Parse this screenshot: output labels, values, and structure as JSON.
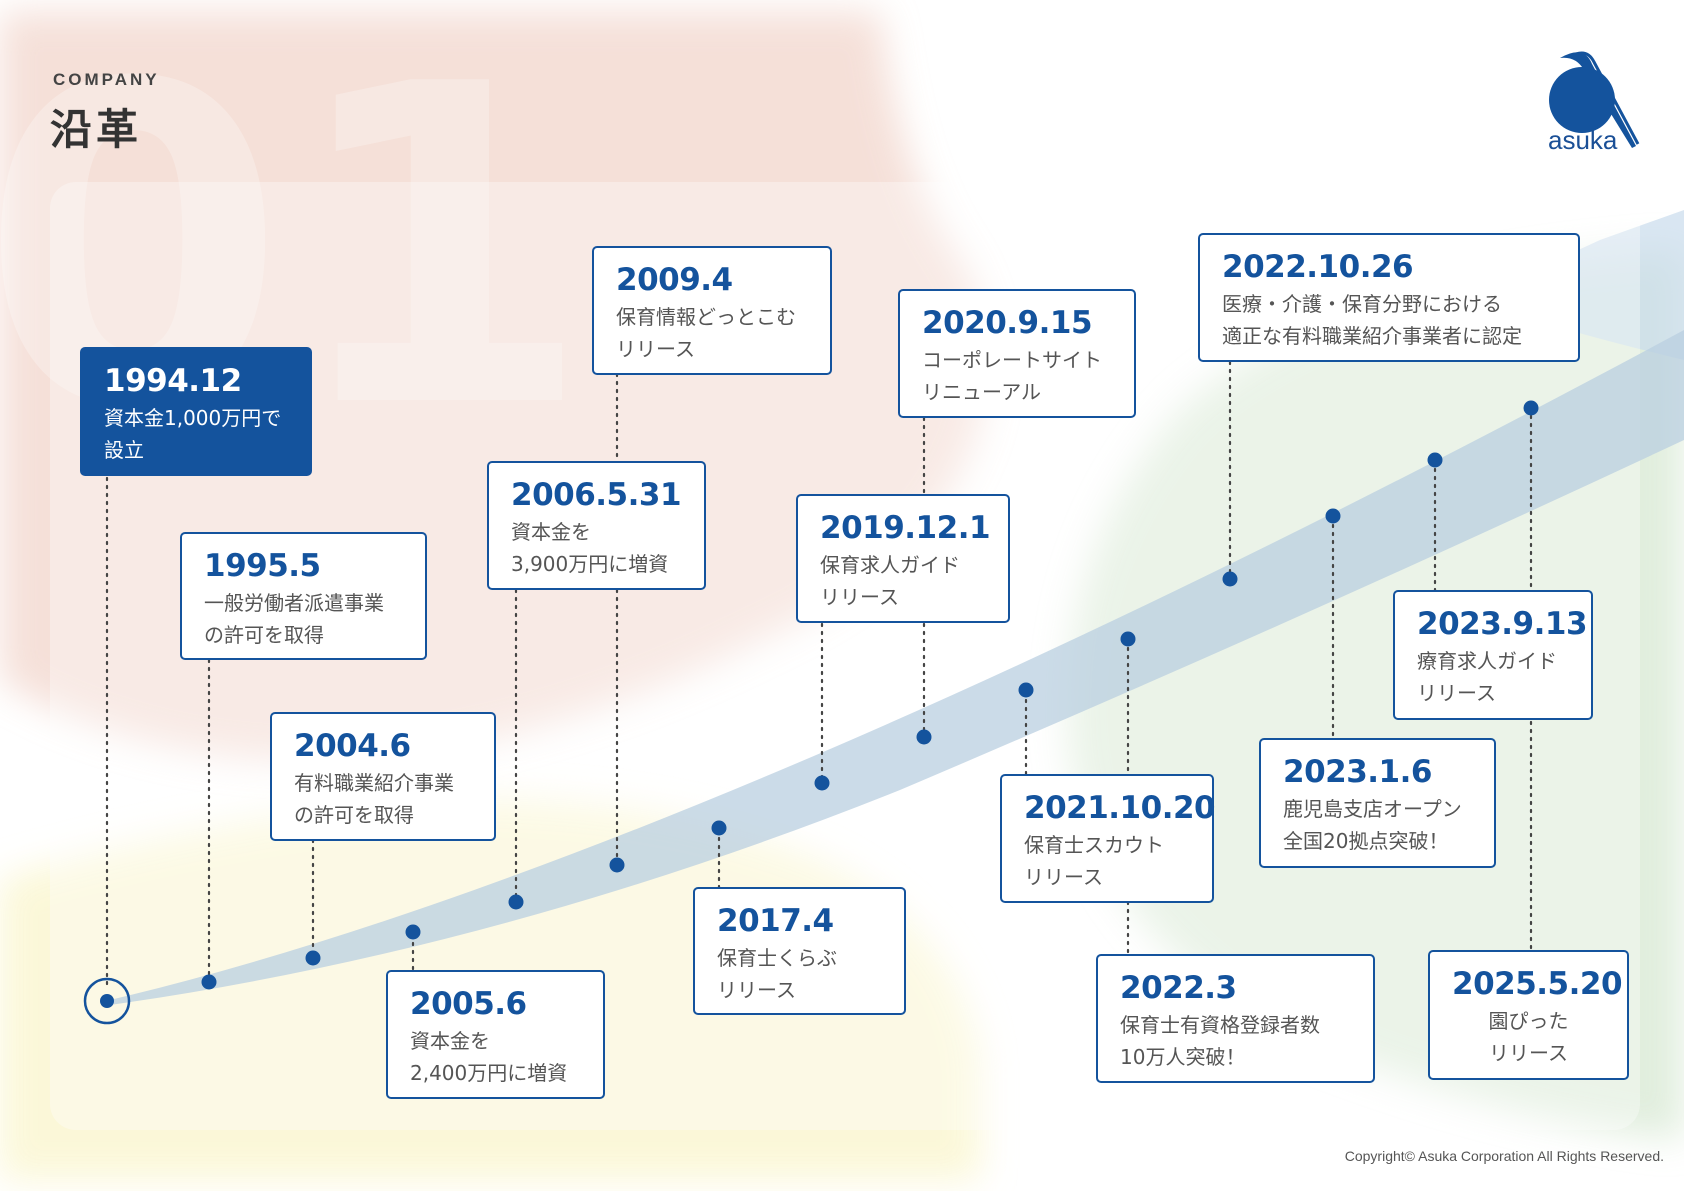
{
  "header": {
    "subtitle": "COMPANY",
    "title": "沿革"
  },
  "logo": {
    "text": "asuka"
  },
  "footer": {
    "copyright": "Copyright© Asuka Corporation All Rights Reserved."
  },
  "colors": {
    "primary": "#14539d",
    "timeline_band": "#b9cfe0"
  },
  "events": [
    {
      "date": "1994.12",
      "desc": "資本金1,000万円で\n設立"
    },
    {
      "date": "1995.5",
      "desc": "一般労働者派遣事業\nの許可を取得"
    },
    {
      "date": "2004.6",
      "desc": "有料職業紹介事業\nの許可を取得"
    },
    {
      "date": "2005.6",
      "desc": "資本金を\n2,400万円に増資"
    },
    {
      "date": "2006.5.31",
      "desc": "資本金を\n3,900万円に増資"
    },
    {
      "date": "2009.4",
      "desc": "保育情報どっとこむ\nリリース"
    },
    {
      "date": "2017.4",
      "desc": "保育士くらぶ\nリリース"
    },
    {
      "date": "2019.12.1",
      "desc": "保育求人ガイド\nリリース"
    },
    {
      "date": "2020.9.15",
      "desc": "コーポレートサイト\nリニューアル"
    },
    {
      "date": "2021.10.20",
      "desc": "保育士スカウト\nリリース"
    },
    {
      "date": "2022.3",
      "desc": "保育士有資格登録者数\n10万人突破！"
    },
    {
      "date": "2022.10.26",
      "desc": "医療・介護・保育分野における\n適正な有料職業紹介事業者に認定"
    },
    {
      "date": "2023.1.6",
      "desc": "鹿児島支店オープン\n全国20拠点突破！"
    },
    {
      "date": "2023.9.13",
      "desc": "療育求人ガイド\nリリース"
    },
    {
      "date": "2025.5.20",
      "desc": "園ぴった\nリリース"
    }
  ]
}
